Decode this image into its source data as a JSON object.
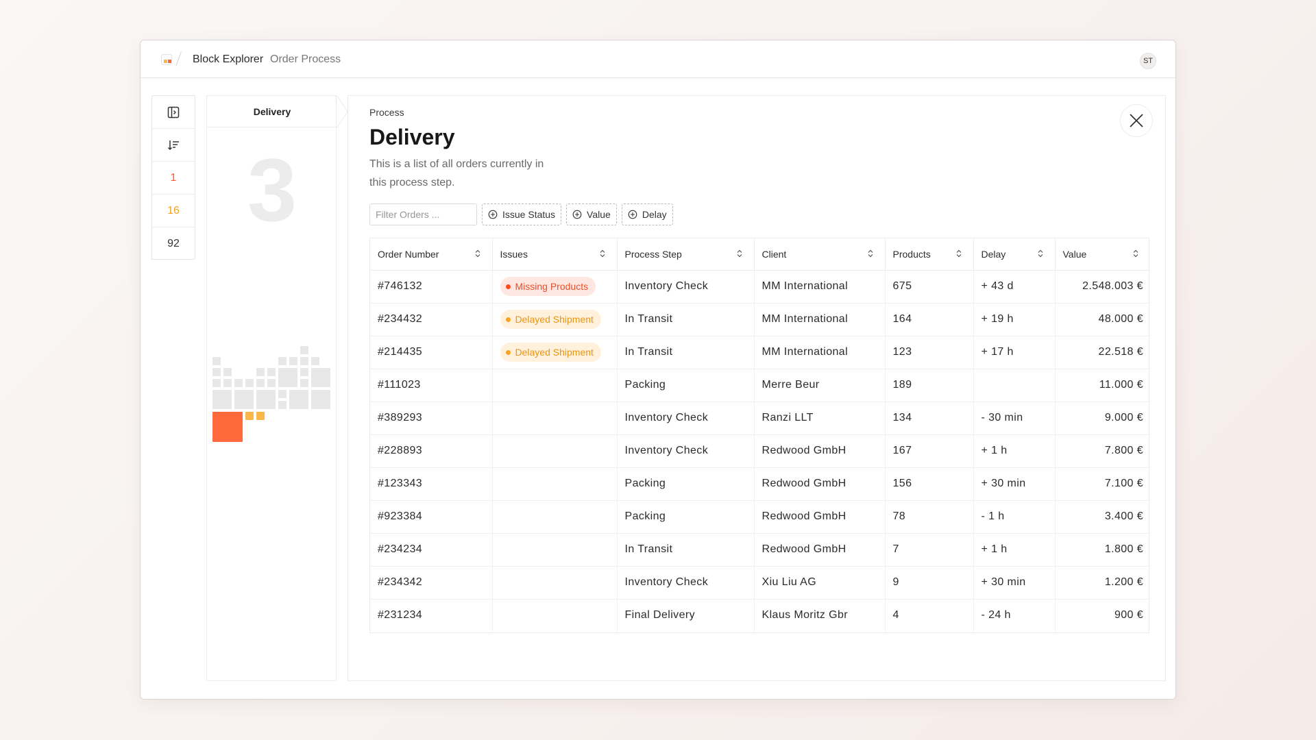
{
  "header": {
    "app_name": "Block Explorer",
    "page_name": "Order Process",
    "user_initials": "ST"
  },
  "rail": {
    "items": [
      {
        "type": "icon",
        "icon": "sidebar-toggle-icon"
      },
      {
        "type": "icon",
        "icon": "sort-icon"
      },
      {
        "type": "count",
        "value": "1",
        "color": "#ff5c2b"
      },
      {
        "type": "count",
        "value": "16",
        "color": "#f3a321"
      },
      {
        "type": "count",
        "value": "92",
        "color": "#333333"
      }
    ]
  },
  "step_panel": {
    "tab_label": "Delivery",
    "big_number": "3"
  },
  "main": {
    "eyebrow": "Process",
    "title": "Delivery",
    "description": "This is a list of all orders currently in this process step.",
    "filter": {
      "placeholder": "Filter Orders ..."
    },
    "filter_chips": [
      "Issue Status",
      "Value",
      "Delay"
    ],
    "columns": [
      "Order Number",
      "Issues",
      "Process Step",
      "Client",
      "Products",
      "Delay",
      "Value"
    ],
    "rows": [
      {
        "order": "#746132",
        "issue": "Missing Products",
        "issue_level": "red",
        "step": "Inventory Check",
        "client": "MM International",
        "products": "675",
        "delay": "+ 43 d",
        "value": "2.548.003 €"
      },
      {
        "order": "#234432",
        "issue": "Delayed Shipment",
        "issue_level": "orange",
        "step": "In Transit",
        "client": "MM International",
        "products": "164",
        "delay": "+ 19 h",
        "value": "48.000 €"
      },
      {
        "order": "#214435",
        "issue": "Delayed Shipment",
        "issue_level": "orange",
        "step": "In Transit",
        "client": "MM International",
        "products": "123",
        "delay": "+ 17 h",
        "value": "22.518 €"
      },
      {
        "order": "#111023",
        "issue": "",
        "issue_level": "",
        "step": "Packing",
        "client": "Merre Beur",
        "products": "189",
        "delay": "",
        "value": "11.000 €"
      },
      {
        "order": "#389293",
        "issue": "",
        "issue_level": "",
        "step": "Inventory Check",
        "client": "Ranzi LLT",
        "products": "134",
        "delay": "- 30 min",
        "value": "9.000 €"
      },
      {
        "order": "#228893",
        "issue": "",
        "issue_level": "",
        "step": "Inventory Check",
        "client": "Redwood GmbH",
        "products": "167",
        "delay": "+ 1 h",
        "value": "7.800 €"
      },
      {
        "order": "#123343",
        "issue": "",
        "issue_level": "",
        "step": "Packing",
        "client": "Redwood GmbH",
        "products": "156",
        "delay": "+ 30 min",
        "value": "7.100 €"
      },
      {
        "order": "#923384",
        "issue": "",
        "issue_level": "",
        "step": "Packing",
        "client": "Redwood GmbH",
        "products": "78",
        "delay": "- 1 h",
        "value": "3.400 €"
      },
      {
        "order": "#234234",
        "issue": "",
        "issue_level": "",
        "step": "In Transit",
        "client": "Redwood GmbH",
        "products": "7",
        "delay": "+ 1 h",
        "value": "1.800 €"
      },
      {
        "order": "#234342",
        "issue": "",
        "issue_level": "",
        "step": "Inventory Check",
        "client": "Xiu Liu AG",
        "products": "9",
        "delay": "+ 30 min",
        "value": "1.200 €"
      },
      {
        "order": "#231234",
        "issue": "",
        "issue_level": "",
        "step": "Final Delivery",
        "client": "Klaus Moritz Gbr",
        "products": "4",
        "delay": "- 24 h",
        "value": "900 €"
      }
    ]
  },
  "colors": {
    "accent_red": "#ff6a3d",
    "accent_orange": "#fbb84a",
    "block_gray": "#e8e8e8"
  }
}
